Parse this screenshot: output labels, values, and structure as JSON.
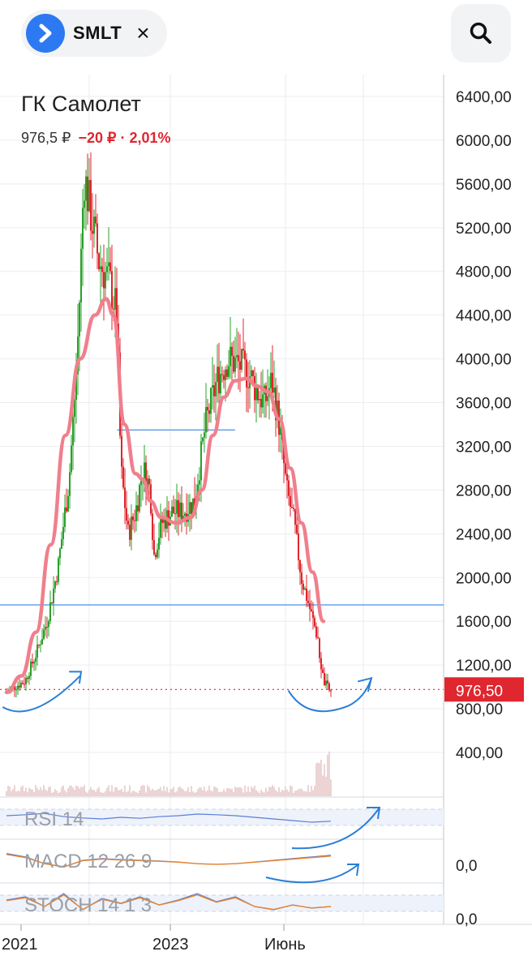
{
  "header": {
    "ticker": "SMLT",
    "close_icon": "×",
    "icons": [
      "ticker-logo-icon",
      "close-icon",
      "search-icon"
    ]
  },
  "title": "ГК Самолет",
  "quote": {
    "price": "976,5 ₽",
    "change": "−20 ₽ · 2,01%"
  },
  "colors": {
    "up": "#2aa02a",
    "down": "#e0262e",
    "ma": "#f07f8c",
    "level": "#4a90e2",
    "annotation": "#2a7fd4",
    "current_price_bg": "#e0262e"
  },
  "chart_data": {
    "type": "candlestick",
    "ylim": [
      0,
      6600
    ],
    "y_ticks": [
      "6400,00",
      "6000,00",
      "5600,00",
      "5200,00",
      "4800,00",
      "4400,00",
      "4000,00",
      "3600,00",
      "3200,00",
      "2800,00",
      "2400,00",
      "2000,00",
      "1600,00",
      "1200,00",
      "800,00",
      "400,00"
    ],
    "x_ticks": [
      "2021",
      "2023",
      "Июнь"
    ],
    "current_price_label": "976,50",
    "current_price": 976.5,
    "horizontal_levels": [
      1750,
      3350
    ],
    "price_path": [
      {
        "t": 0,
        "v": 950
      },
      {
        "t": 2,
        "v": 1000
      },
      {
        "t": 5,
        "v": 1050
      },
      {
        "t": 8,
        "v": 1300
      },
      {
        "t": 11,
        "v": 1600
      },
      {
        "t": 14,
        "v": 2100
      },
      {
        "t": 17,
        "v": 2900
      },
      {
        "t": 19,
        "v": 3900
      },
      {
        "t": 20,
        "v": 4700
      },
      {
        "t": 21,
        "v": 5700
      },
      {
        "t": 23,
        "v": 5300
      },
      {
        "t": 25,
        "v": 4900
      },
      {
        "t": 28,
        "v": 4700
      },
      {
        "t": 30,
        "v": 4400
      },
      {
        "t": 31,
        "v": 3000
      },
      {
        "t": 33,
        "v": 2400
      },
      {
        "t": 35,
        "v": 2600
      },
      {
        "t": 37,
        "v": 3000
      },
      {
        "t": 39,
        "v": 2800
      },
      {
        "t": 40,
        "v": 2200
      },
      {
        "t": 42,
        "v": 2500
      },
      {
        "t": 45,
        "v": 2600
      },
      {
        "t": 48,
        "v": 2600
      },
      {
        "t": 51,
        "v": 2700
      },
      {
        "t": 54,
        "v": 3400
      },
      {
        "t": 57,
        "v": 3800
      },
      {
        "t": 60,
        "v": 4000
      },
      {
        "t": 63,
        "v": 3950
      },
      {
        "t": 66,
        "v": 3850
      },
      {
        "t": 68,
        "v": 3700
      },
      {
        "t": 70,
        "v": 3600
      },
      {
        "t": 72,
        "v": 3800
      },
      {
        "t": 74,
        "v": 3400
      },
      {
        "t": 76,
        "v": 2800
      },
      {
        "t": 78,
        "v": 2500
      },
      {
        "t": 80,
        "v": 2000
      },
      {
        "t": 82,
        "v": 1750
      },
      {
        "t": 84,
        "v": 1500
      },
      {
        "t": 86,
        "v": 1050
      },
      {
        "t": 88,
        "v": 950
      }
    ],
    "moving_average": [
      {
        "t": 0,
        "v": 950
      },
      {
        "t": 4,
        "v": 1100
      },
      {
        "t": 8,
        "v": 1500
      },
      {
        "t": 12,
        "v": 2300
      },
      {
        "t": 16,
        "v": 3300
      },
      {
        "t": 20,
        "v": 4000
      },
      {
        "t": 24,
        "v": 4400
      },
      {
        "t": 27,
        "v": 4550
      },
      {
        "t": 29,
        "v": 4400
      },
      {
        "t": 32,
        "v": 3400
      },
      {
        "t": 35,
        "v": 2950
      },
      {
        "t": 37,
        "v": 2900
      },
      {
        "t": 39,
        "v": 2700
      },
      {
        "t": 42,
        "v": 2550
      },
      {
        "t": 46,
        "v": 2500
      },
      {
        "t": 50,
        "v": 2550
      },
      {
        "t": 53,
        "v": 2800
      },
      {
        "t": 56,
        "v": 3300
      },
      {
        "t": 59,
        "v": 3650
      },
      {
        "t": 62,
        "v": 3800
      },
      {
        "t": 65,
        "v": 3820
      },
      {
        "t": 68,
        "v": 3750
      },
      {
        "t": 71,
        "v": 3700
      },
      {
        "t": 74,
        "v": 3450
      },
      {
        "t": 77,
        "v": 3000
      },
      {
        "t": 80,
        "v": 2500
      },
      {
        "t": 83,
        "v": 2050
      },
      {
        "t": 86,
        "v": 1600
      }
    ],
    "indicators": [
      {
        "name": "RSI 14",
        "path": [
          55,
          58,
          62,
          52,
          48,
          45,
          50,
          47,
          52,
          55,
          60,
          58,
          55,
          50,
          45,
          40,
          35,
          38
        ]
      },
      {
        "name": "MACD 12 26 9",
        "path": [
          70,
          60,
          40,
          30,
          50,
          55,
          52,
          50,
          48,
          45,
          40,
          38,
          40,
          45,
          50,
          55,
          60,
          65
        ]
      },
      {
        "name": "STOCH 14 1 3",
        "path": [
          60,
          70,
          40,
          80,
          30,
          65,
          50,
          70,
          45,
          60,
          80,
          55,
          70,
          40,
          30,
          45,
          35,
          40
        ]
      }
    ],
    "indicator_ticks": [
      "0,0",
      "0,0"
    ]
  }
}
